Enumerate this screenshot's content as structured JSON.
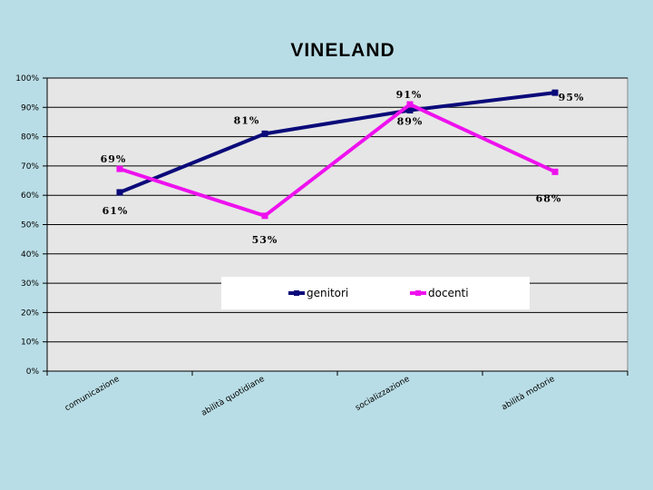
{
  "chart_data": {
    "type": "line",
    "title": "VINELAND",
    "categories": [
      "comunicazione",
      "abilità quotidiane",
      "socializzazione",
      "abilità motorie"
    ],
    "series": [
      {
        "name": "genitori",
        "values": [
          61,
          81,
          89,
          95
        ],
        "color": "#0a0a7a",
        "labels": [
          "61%",
          "81%",
          "89%",
          "95%"
        ]
      },
      {
        "name": "docenti",
        "values": [
          69,
          53,
          91,
          68
        ],
        "color": "#ee11ee",
        "labels": [
          "69%",
          "53%",
          "91%",
          "68%"
        ]
      }
    ],
    "ylim": [
      0,
      100
    ],
    "yticks": [
      "0%",
      "10%",
      "20%",
      "30%",
      "40%",
      "50%",
      "60%",
      "70%",
      "80%",
      "90%",
      "100%"
    ],
    "grid": true,
    "legend": "inside-bottom-center",
    "plot_background": "#e6e6e6"
  }
}
